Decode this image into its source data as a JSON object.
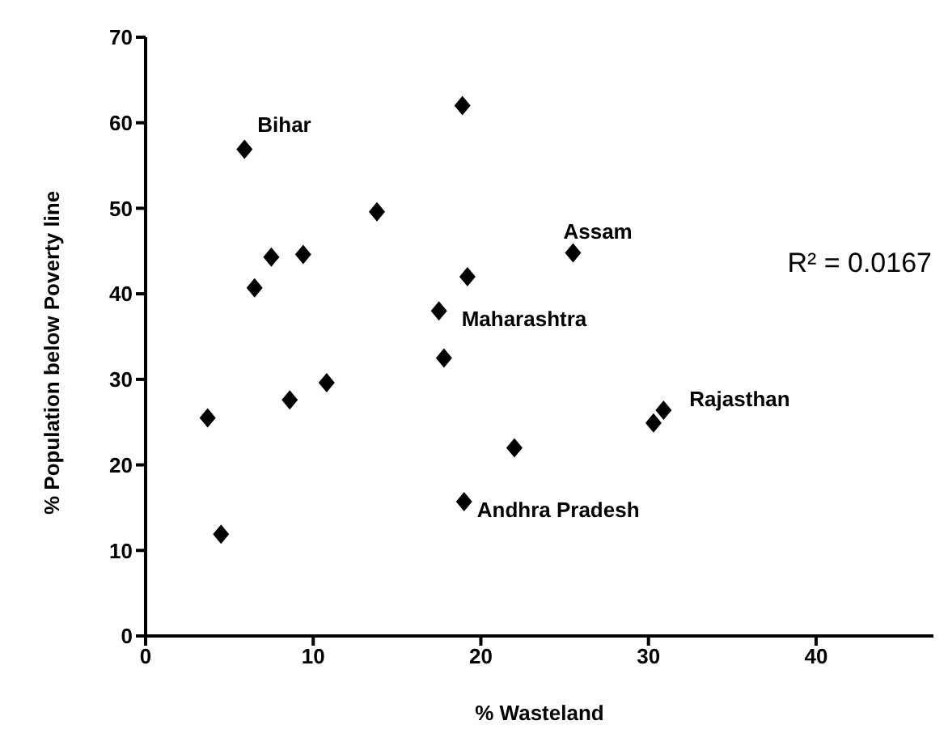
{
  "chart_data": {
    "type": "scatter",
    "xlabel": "% Wasteland",
    "ylabel": "% Population below Poverty  line",
    "x": [
      3.7,
      4.5,
      5.9,
      6.5,
      7.5,
      8.6,
      9.4,
      10.8,
      13.8,
      17.5,
      17.8,
      18.9,
      19.2,
      19.0,
      22.0,
      25.5,
      30.3,
      30.9
    ],
    "series": [
      {
        "color": "#000000",
        "values": [
          25.5,
          11.9,
          56.9,
          40.7,
          44.3,
          27.6,
          44.6,
          29.6,
          49.6,
          38.0,
          32.5,
          62.0,
          42.0,
          15.7,
          22.0,
          44.8,
          24.9,
          26.4
        ]
      }
    ],
    "xlim": [
      0,
      47
    ],
    "xticks": [
      0,
      10,
      20,
      30,
      40
    ],
    "ylim": [
      0,
      70
    ],
    "yticks": [
      0,
      10,
      20,
      30,
      40,
      50,
      60,
      70
    ],
    "marker": "diamond",
    "grid": false,
    "legend": false,
    "annotations": [
      {
        "text": "Bihar",
        "x": 5.9,
        "y": 56.9
      },
      {
        "text": "Assam",
        "x": 25.5,
        "y": 44.8
      },
      {
        "text": "Maharashtra",
        "x": 17.5,
        "y": 38.0
      },
      {
        "text": "Rajasthan",
        "x": 30.9,
        "y": 26.4
      },
      {
        "text": "Andhra Pradesh",
        "x": 19.0,
        "y": 15.7
      },
      "R² = 0.0167"
    ]
  }
}
